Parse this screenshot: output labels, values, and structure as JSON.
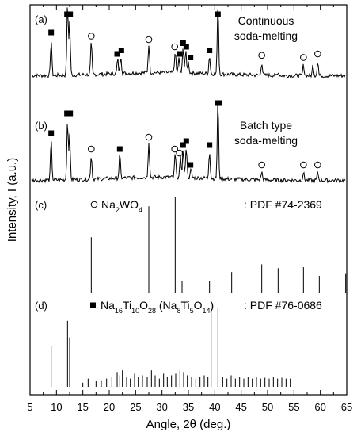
{
  "chart_data": {
    "type": "line",
    "xlabel": "Angle, 2θ (deg.)",
    "ylabel": "Intensity, I (a.u.)",
    "xlim": [
      5,
      65
    ],
    "x_ticks": [
      "5",
      "10",
      "15",
      "20",
      "25",
      "30",
      "35",
      "40",
      "45",
      "50",
      "55",
      "60",
      "65"
    ],
    "grid": false,
    "panels": [
      {
        "tag": "(a)",
        "kind": "pattern",
        "label_line1": "Continuous",
        "label_line2": "soda-melting",
        "peaks": [
          {
            "x": 9.0,
            "h": 0.5
          },
          {
            "x": 12.1,
            "h": 1.0
          },
          {
            "x": 12.5,
            "h": 0.75
          },
          {
            "x": 16.6,
            "h": 0.45
          },
          {
            "x": 21.6,
            "h": 0.2
          },
          {
            "x": 22.2,
            "h": 0.25
          },
          {
            "x": 27.5,
            "h": 0.4
          },
          {
            "x": 32.5,
            "h": 0.3
          },
          {
            "x": 33.2,
            "h": 0.2
          },
          {
            "x": 34.0,
            "h": 0.35
          },
          {
            "x": 34.5,
            "h": 0.3
          },
          {
            "x": 35.0,
            "h": 0.15
          },
          {
            "x": 39.0,
            "h": 0.25
          },
          {
            "x": 40.6,
            "h": 1.0
          },
          {
            "x": 48.9,
            "h": 0.18
          },
          {
            "x": 52.0,
            "h": 0.05
          },
          {
            "x": 56.8,
            "h": 0.15
          },
          {
            "x": 58.6,
            "h": 0.15
          },
          {
            "x": 59.5,
            "h": 0.2
          }
        ],
        "markers": [
          {
            "x": 9.0,
            "s": "square"
          },
          {
            "x": 12.0,
            "s": "square"
          },
          {
            "x": 12.6,
            "s": "square"
          },
          {
            "x": 16.6,
            "s": "circle"
          },
          {
            "x": 21.5,
            "s": "square"
          },
          {
            "x": 22.3,
            "s": "square"
          },
          {
            "x": 27.5,
            "s": "circle"
          },
          {
            "x": 32.4,
            "s": "circle"
          },
          {
            "x": 33.3,
            "s": "square"
          },
          {
            "x": 34.0,
            "s": "square"
          },
          {
            "x": 34.6,
            "s": "square"
          },
          {
            "x": 35.4,
            "s": "square"
          },
          {
            "x": 39.0,
            "s": "square"
          },
          {
            "x": 40.6,
            "s": "square"
          },
          {
            "x": 48.9,
            "s": "circle"
          },
          {
            "x": 56.8,
            "s": "circle"
          },
          {
            "x": 59.5,
            "s": "circle"
          }
        ]
      },
      {
        "tag": "(b)",
        "kind": "pattern",
        "label_line1": "Batch type",
        "label_line2": "soda-melting",
        "peaks": [
          {
            "x": 9.0,
            "h": 0.5
          },
          {
            "x": 12.1,
            "h": 0.75
          },
          {
            "x": 12.5,
            "h": 0.55
          },
          {
            "x": 16.6,
            "h": 0.3
          },
          {
            "x": 22.0,
            "h": 0.3
          },
          {
            "x": 27.5,
            "h": 0.45
          },
          {
            "x": 32.5,
            "h": 0.3
          },
          {
            "x": 33.5,
            "h": 0.25
          },
          {
            "x": 34.0,
            "h": 0.35
          },
          {
            "x": 34.6,
            "h": 0.4
          },
          {
            "x": 35.5,
            "h": 0.1
          },
          {
            "x": 39.0,
            "h": 0.35
          },
          {
            "x": 40.6,
            "h": 1.0
          },
          {
            "x": 48.9,
            "h": 0.1
          },
          {
            "x": 56.8,
            "h": 0.1
          },
          {
            "x": 59.5,
            "h": 0.1
          }
        ],
        "markers": [
          {
            "x": 9.0,
            "s": "square"
          },
          {
            "x": 12.0,
            "s": "square"
          },
          {
            "x": 12.6,
            "s": "square"
          },
          {
            "x": 16.6,
            "s": "circle"
          },
          {
            "x": 22.0,
            "s": "square"
          },
          {
            "x": 27.5,
            "s": "circle"
          },
          {
            "x": 32.4,
            "s": "circle"
          },
          {
            "x": 33.3,
            "s": "circle"
          },
          {
            "x": 34.0,
            "s": "square"
          },
          {
            "x": 34.6,
            "s": "square"
          },
          {
            "x": 35.4,
            "s": "square"
          },
          {
            "x": 39.0,
            "s": "square"
          },
          {
            "x": 40.5,
            "s": "square"
          },
          {
            "x": 40.9,
            "s": "square"
          },
          {
            "x": 48.9,
            "s": "circle"
          },
          {
            "x": 56.8,
            "s": "circle"
          },
          {
            "x": 59.5,
            "s": "circle"
          }
        ]
      },
      {
        "tag": "(c)",
        "kind": "reference",
        "symbol": "circle",
        "compound": "Na2WO4",
        "compound_main": "Na",
        "compound_sub1": "2",
        "compound_mid": "WO",
        "compound_sub2": "4",
        "pdf": ": PDF #74-2369",
        "lines": [
          {
            "x": 16.6,
            "h": 0.58
          },
          {
            "x": 27.5,
            "h": 0.9
          },
          {
            "x": 32.5,
            "h": 1.0
          },
          {
            "x": 33.8,
            "h": 0.13
          },
          {
            "x": 39.0,
            "h": 0.13
          },
          {
            "x": 43.2,
            "h": 0.22
          },
          {
            "x": 48.9,
            "h": 0.3
          },
          {
            "x": 52.0,
            "h": 0.26
          },
          {
            "x": 56.8,
            "h": 0.27
          },
          {
            "x": 59.8,
            "h": 0.18
          },
          {
            "x": 64.8,
            "h": 0.2
          }
        ]
      },
      {
        "tag": "(d)",
        "kind": "reference",
        "symbol": "square",
        "compound": "Na16Ti10O28 (Na8Ti5O14)",
        "pdf": ": PDF #76-0686",
        "formula_parts": [
          "Na",
          "16",
          "Ti",
          "10",
          "O",
          "28",
          " (Na",
          "8",
          "Ti",
          "5",
          "O",
          "14",
          ")"
        ],
        "lines": [
          {
            "x": 9.0,
            "h": 0.5
          },
          {
            "x": 12.1,
            "h": 0.8
          },
          {
            "x": 12.5,
            "h": 0.6
          },
          {
            "x": 15.0,
            "h": 0.05
          },
          {
            "x": 16.0,
            "h": 0.1
          },
          {
            "x": 17.5,
            "h": 0.07
          },
          {
            "x": 18.5,
            "h": 0.08
          },
          {
            "x": 19.5,
            "h": 0.1
          },
          {
            "x": 20.5,
            "h": 0.12
          },
          {
            "x": 21.5,
            "h": 0.18
          },
          {
            "x": 22.0,
            "h": 0.14
          },
          {
            "x": 22.5,
            "h": 0.2
          },
          {
            "x": 23.3,
            "h": 0.12
          },
          {
            "x": 24.0,
            "h": 0.1
          },
          {
            "x": 24.8,
            "h": 0.16
          },
          {
            "x": 25.5,
            "h": 0.12
          },
          {
            "x": 26.3,
            "h": 0.14
          },
          {
            "x": 27.2,
            "h": 0.12
          },
          {
            "x": 28.0,
            "h": 0.2
          },
          {
            "x": 28.7,
            "h": 0.14
          },
          {
            "x": 29.5,
            "h": 0.1
          },
          {
            "x": 30.3,
            "h": 0.16
          },
          {
            "x": 31.0,
            "h": 0.12
          },
          {
            "x": 31.8,
            "h": 0.14
          },
          {
            "x": 32.6,
            "h": 0.16
          },
          {
            "x": 33.4,
            "h": 0.2
          },
          {
            "x": 34.1,
            "h": 0.18
          },
          {
            "x": 34.8,
            "h": 0.14
          },
          {
            "x": 35.6,
            "h": 0.12
          },
          {
            "x": 36.4,
            "h": 0.1
          },
          {
            "x": 37.2,
            "h": 0.12
          },
          {
            "x": 38.0,
            "h": 0.14
          },
          {
            "x": 38.7,
            "h": 0.12
          },
          {
            "x": 39.3,
            "h": 1.0
          },
          {
            "x": 40.6,
            "h": 0.95
          },
          {
            "x": 41.5,
            "h": 0.12
          },
          {
            "x": 42.3,
            "h": 0.1
          },
          {
            "x": 43.1,
            "h": 0.14
          },
          {
            "x": 43.9,
            "h": 0.1
          },
          {
            "x": 44.7,
            "h": 0.12
          },
          {
            "x": 45.5,
            "h": 0.1
          },
          {
            "x": 46.3,
            "h": 0.12
          },
          {
            "x": 47.1,
            "h": 0.1
          },
          {
            "x": 47.9,
            "h": 0.12
          },
          {
            "x": 48.7,
            "h": 0.1
          },
          {
            "x": 49.5,
            "h": 0.11
          },
          {
            "x": 50.3,
            "h": 0.1
          },
          {
            "x": 51.1,
            "h": 0.12
          },
          {
            "x": 51.9,
            "h": 0.1
          },
          {
            "x": 52.7,
            "h": 0.11
          },
          {
            "x": 53.5,
            "h": 0.1
          },
          {
            "x": 54.3,
            "h": 0.1
          }
        ]
      }
    ]
  }
}
